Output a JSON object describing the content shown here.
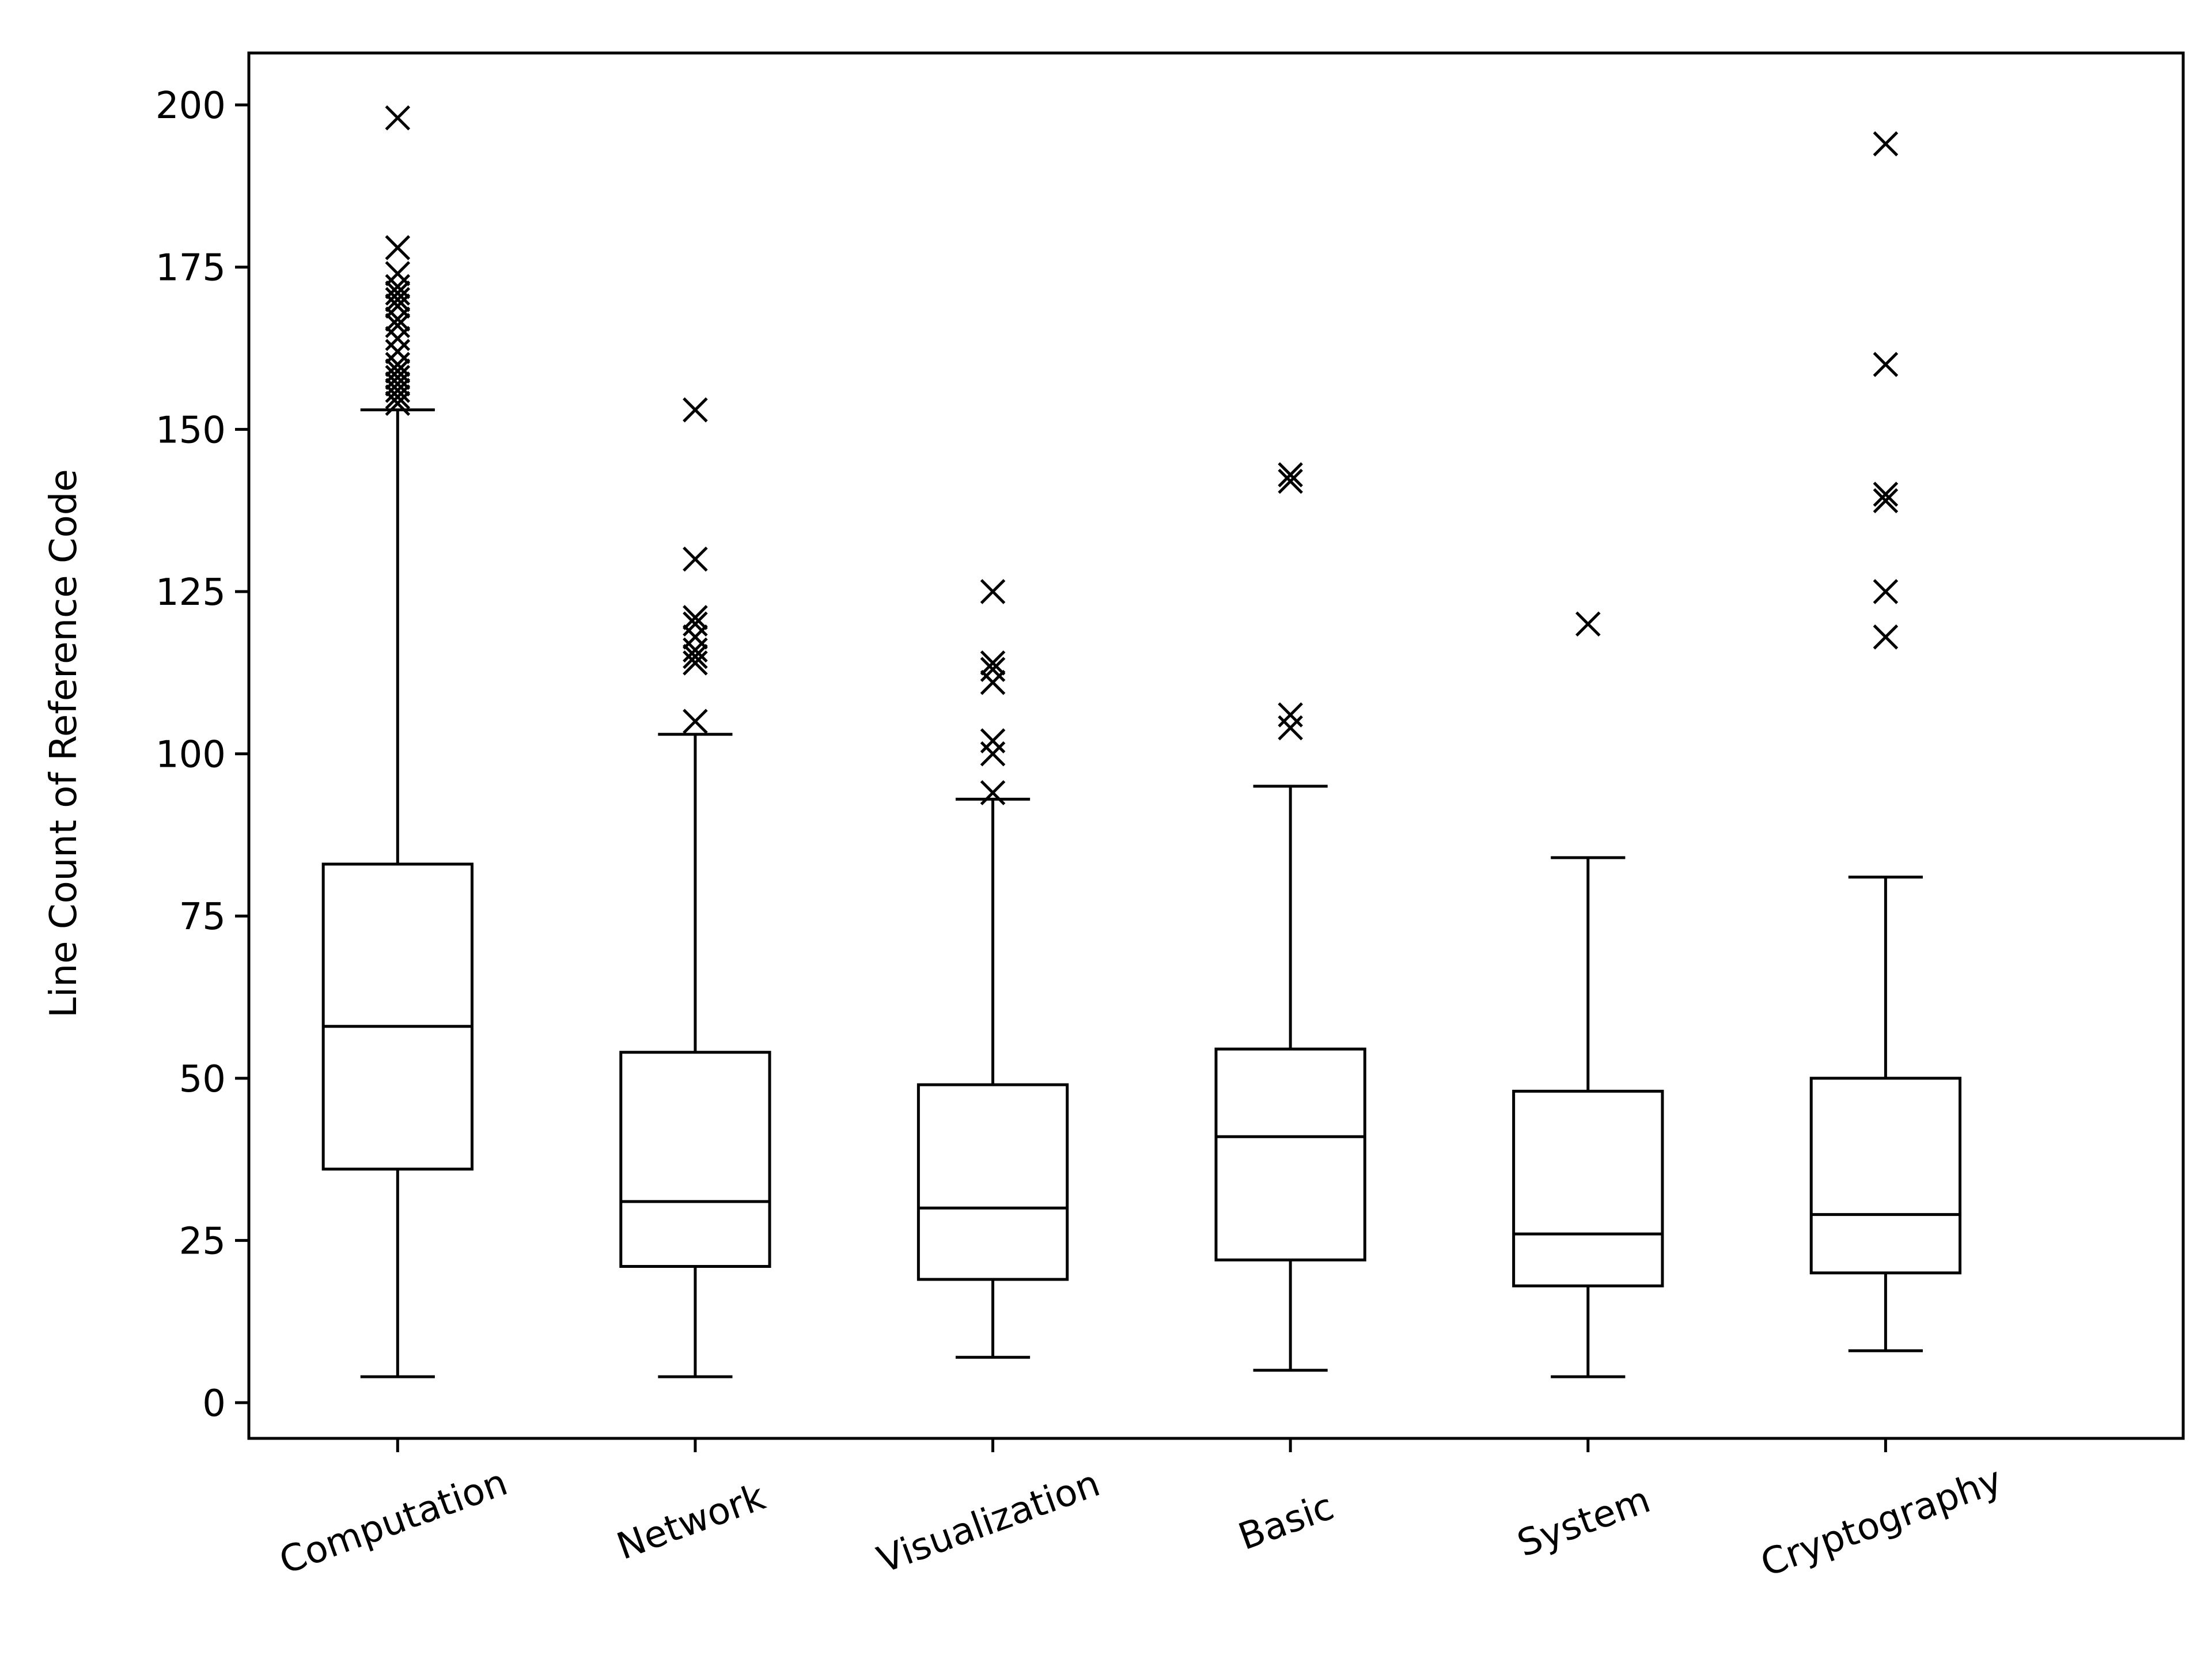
{
  "chart_data": {
    "type": "box",
    "title": "",
    "xlabel": "",
    "ylabel": "Line Count of Reference Code",
    "ylim": [
      -5.5,
      208
    ],
    "yticks": [
      0,
      25,
      50,
      75,
      100,
      125,
      150,
      175,
      200
    ],
    "grid": false,
    "categories": [
      "Computation",
      "Network",
      "Visualization",
      "Basic",
      "System",
      "Cryptography"
    ],
    "boxes": [
      {
        "category": "Computation",
        "whisker_low": 4,
        "q1": 36,
        "median": 58,
        "q3": 83,
        "whisker_high": 153,
        "outliers": [
          154,
          155,
          156,
          157,
          158,
          159,
          160,
          162,
          164,
          166,
          167,
          169,
          170,
          171,
          172,
          174,
          178,
          198
        ]
      },
      {
        "category": "Network",
        "whisker_low": 4,
        "q1": 21,
        "median": 31,
        "q3": 54,
        "whisker_high": 103,
        "outliers": [
          105,
          114,
          115,
          116,
          118,
          120,
          121,
          130,
          153
        ]
      },
      {
        "category": "Visualization",
        "whisker_low": 7,
        "q1": 19,
        "median": 30,
        "q3": 49,
        "whisker_high": 93,
        "outliers": [
          94,
          100,
          102,
          111,
          113,
          114,
          125
        ]
      },
      {
        "category": "Basic",
        "whisker_low": 5,
        "q1": 22,
        "median": 41,
        "q3": 54.5,
        "whisker_high": 95,
        "outliers": [
          104,
          106,
          142,
          143
        ]
      },
      {
        "category": "System",
        "whisker_low": 4,
        "q1": 18,
        "median": 26,
        "q3": 48,
        "whisker_high": 84,
        "outliers": [
          120
        ]
      },
      {
        "category": "Cryptography",
        "whisker_low": 8,
        "q1": 20,
        "median": 29,
        "q3": 50,
        "whisker_high": 81,
        "outliers": [
          118,
          125,
          139,
          140,
          160,
          194
        ]
      }
    ]
  }
}
